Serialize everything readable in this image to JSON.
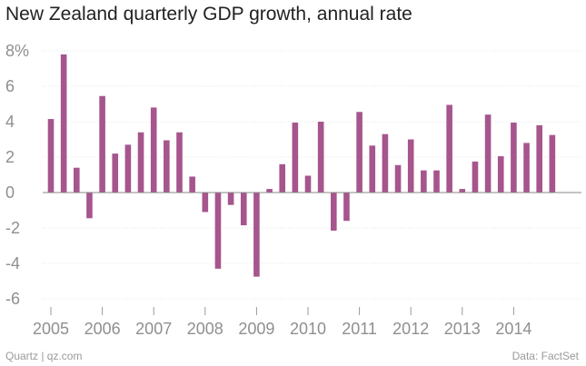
{
  "chart_data": {
    "type": "bar",
    "title": "New Zealand quarterly GDP growth, annual rate",
    "xlabel": "",
    "ylabel": "",
    "ylim": [
      -7,
      8.5
    ],
    "y_ticks": [
      {
        "value": 8,
        "label": "8%"
      },
      {
        "value": 6,
        "label": "6"
      },
      {
        "value": 4,
        "label": "4"
      },
      {
        "value": 2,
        "label": "2"
      },
      {
        "value": 0,
        "label": "0"
      },
      {
        "value": -2,
        "label": "-2"
      },
      {
        "value": -4,
        "label": "-4"
      },
      {
        "value": -6,
        "label": "-6"
      }
    ],
    "x_tick_labels": [
      "2005",
      "2006",
      "2007",
      "2008",
      "2009",
      "2010",
      "2011",
      "2012",
      "2013",
      "2014"
    ],
    "categories": [
      "2005Q1",
      "2005Q2",
      "2005Q3",
      "2005Q4",
      "2006Q1",
      "2006Q2",
      "2006Q3",
      "2006Q4",
      "2007Q1",
      "2007Q2",
      "2007Q3",
      "2007Q4",
      "2008Q1",
      "2008Q2",
      "2008Q3",
      "2008Q4",
      "2009Q1",
      "2009Q2",
      "2009Q3",
      "2009Q4",
      "2010Q1",
      "2010Q2",
      "2010Q3",
      "2010Q4",
      "2011Q1",
      "2011Q2",
      "2011Q3",
      "2011Q4",
      "2012Q1",
      "2012Q2",
      "2012Q3",
      "2012Q4",
      "2013Q1",
      "2013Q2",
      "2013Q3",
      "2013Q4",
      "2014Q1",
      "2014Q2",
      "2014Q3",
      "2014Q4"
    ],
    "values": [
      4.15,
      7.8,
      1.4,
      -1.45,
      5.45,
      2.2,
      2.7,
      3.4,
      4.8,
      2.95,
      3.4,
      0.9,
      -1.1,
      -4.3,
      -0.7,
      -1.85,
      -4.75,
      0.2,
      1.6,
      3.95,
      0.95,
      4.0,
      -2.15,
      -1.6,
      4.55,
      2.65,
      3.3,
      1.55,
      3.0,
      1.25,
      1.25,
      4.95,
      0.2,
      1.75,
      4.4,
      2.05,
      3.95,
      2.8,
      3.8,
      3.25
    ],
    "bar_color": "#a6558d",
    "grid": true
  },
  "footer": {
    "source_left": "Quartz | qz.com",
    "source_right": "Data: FactSet"
  }
}
